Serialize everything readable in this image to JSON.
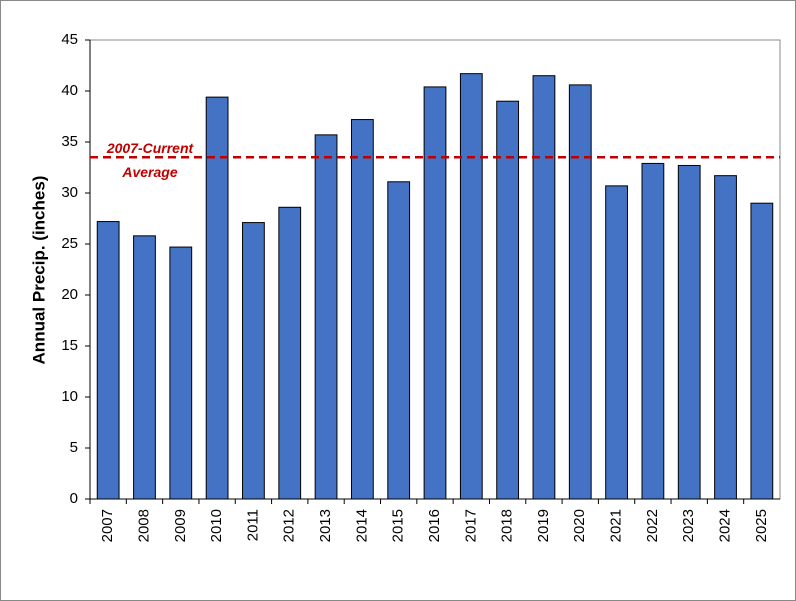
{
  "chart_data": {
    "type": "bar",
    "y_label": "Annual Precip. (inches)",
    "categories": [
      "2007",
      "2008",
      "2009",
      "2010",
      "2011",
      "2012",
      "2013",
      "2014",
      "2015",
      "2016",
      "2017",
      "2018",
      "2019",
      "2020",
      "2021",
      "2022",
      "2023",
      "2024",
      "2025"
    ],
    "values": [
      27.2,
      25.8,
      24.7,
      39.4,
      27.1,
      28.6,
      35.7,
      37.2,
      31.1,
      40.4,
      41.7,
      39.0,
      41.5,
      40.6,
      30.7,
      32.9,
      32.7,
      31.7,
      29.0
    ],
    "color": "#4472c4",
    "ylim": [
      0,
      45
    ],
    "yticks": [
      0,
      5,
      10,
      15,
      20,
      25,
      30,
      35,
      40,
      45
    ],
    "average": {
      "value": 33.5,
      "label": [
        "2007-Current",
        "Average"
      ],
      "color": "#c00000"
    }
  }
}
